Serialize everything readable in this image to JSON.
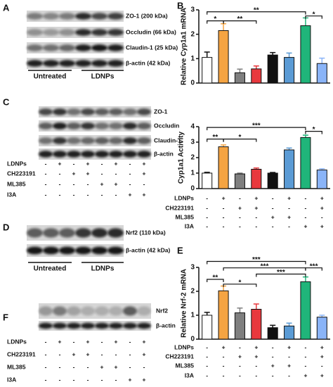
{
  "panel_labels": [
    "A",
    "B",
    "C",
    "D",
    "E",
    "F"
  ],
  "blot_a": {
    "rows": [
      "ZO-1 (200 kDa)",
      "Occludin (66 kDa)",
      "Claudin-1 (25 kDa)",
      "β-actin (42 kDa)"
    ],
    "groups": [
      "Untreated",
      "LDNPs"
    ]
  },
  "blot_c": {
    "rows": [
      "ZO-1",
      "Occludin",
      "Claudin-1",
      "β-actin"
    ],
    "treatments": [
      {
        "name": "LDNPs",
        "marks": [
          "-",
          "+",
          "-",
          "+",
          "-",
          "+",
          "-",
          "+"
        ]
      },
      {
        "name": "CH223191",
        "marks": [
          "-",
          "-",
          "+",
          "+",
          "-",
          "-",
          "-",
          "+"
        ]
      },
      {
        "name": "ML385",
        "marks": [
          "-",
          "-",
          "-",
          "-",
          "+",
          "+",
          "-",
          "-"
        ]
      },
      {
        "name": "I3A",
        "marks": [
          "-",
          "-",
          "-",
          "-",
          "-",
          "-",
          "+",
          "+"
        ]
      }
    ]
  },
  "blot_d": {
    "rows": [
      "Nrf2 (110 kDa)",
      "β-actin (42 kDa)"
    ],
    "groups": [
      "Untreated",
      "LDNPs"
    ]
  },
  "blot_f": {
    "rows": [
      "Nrf2",
      "β-actin"
    ],
    "treatments": [
      {
        "name": "LDNPs",
        "marks": [
          "-",
          "+",
          "-",
          "+",
          "-",
          "+",
          "-",
          "+"
        ]
      },
      {
        "name": "CH223191",
        "marks": [
          "-",
          "-",
          "+",
          "+",
          "-",
          "-",
          "-",
          "+"
        ]
      },
      {
        "name": "ML385",
        "marks": [
          "-",
          "-",
          "-",
          "-",
          "+",
          "+",
          "-",
          "-"
        ]
      },
      {
        "name": "I3A",
        "marks": [
          "-",
          "-",
          "-",
          "-",
          "-",
          "-",
          "+",
          "+"
        ]
      }
    ]
  },
  "chart_data": [
    {
      "type": "bar",
      "ylabel": "Relative Cyp1a1 mRNA",
      "ylim": [
        0,
        3
      ],
      "yticks": [
        0,
        1,
        2,
        3
      ],
      "values": [
        1.05,
        2.15,
        0.42,
        0.58,
        1.15,
        1.05,
        2.35,
        0.8
      ],
      "errors": [
        0.22,
        0.28,
        0.15,
        0.12,
        0.1,
        0.18,
        0.32,
        0.22
      ],
      "colors": [
        "#ffffff",
        "#f5a442",
        "#7f7f7f",
        "#e8383d",
        "#111111",
        "#5b9bd5",
        "#20b57a",
        "#8ab4f8"
      ],
      "annotations": [
        "*",
        "**",
        "**",
        "*"
      ]
    },
    {
      "type": "bar",
      "ylabel": "Cyp1a1 Activity",
      "ylim": [
        0,
        4
      ],
      "yticks": [
        0,
        1,
        2,
        3,
        4
      ],
      "values": [
        1.0,
        2.7,
        0.95,
        1.25,
        1.0,
        2.5,
        3.3,
        1.2
      ],
      "errors": [
        0.05,
        0.12,
        0.05,
        0.08,
        0.04,
        0.12,
        0.15,
        0.08
      ],
      "colors": [
        "#ffffff",
        "#f5a442",
        "#7f7f7f",
        "#e8383d",
        "#111111",
        "#5b9bd5",
        "#20b57a",
        "#8ab4f8"
      ],
      "annotations": [
        "**",
        "*",
        "***",
        "*"
      ],
      "treatments": [
        {
          "name": "LDNPs",
          "marks": [
            "-",
            "+",
            "-",
            "+",
            "-",
            "+",
            "-",
            "+"
          ]
        },
        {
          "name": "CH223191",
          "marks": [
            "-",
            "-",
            "+",
            "+",
            "-",
            "-",
            "-",
            "+"
          ]
        },
        {
          "name": "ML385",
          "marks": [
            "-",
            "-",
            "-",
            "-",
            "+",
            "+",
            "-",
            "-"
          ]
        },
        {
          "name": "I3A",
          "marks": [
            "-",
            "-",
            "-",
            "-",
            "-",
            "-",
            "+",
            "+"
          ]
        }
      ]
    },
    {
      "type": "bar",
      "ylabel": "Relative Nrf-2 mRNA",
      "ylim": [
        0,
        3
      ],
      "yticks": [
        0,
        1,
        2,
        3
      ],
      "values": [
        1.0,
        2.02,
        1.1,
        1.25,
        0.48,
        0.55,
        2.4,
        0.92
      ],
      "errors": [
        0.12,
        0.2,
        0.2,
        0.22,
        0.1,
        0.12,
        0.2,
        0.08
      ],
      "colors": [
        "#ffffff",
        "#f5a442",
        "#7f7f7f",
        "#e8383d",
        "#111111",
        "#5b9bd5",
        "#20b57a",
        "#8ab4f8"
      ],
      "annotations": [
        "**",
        "*",
        "***",
        "***",
        "***",
        "***"
      ],
      "treatments": [
        {
          "name": "LDNPs",
          "marks": [
            "-",
            "+",
            "-",
            "+",
            "-",
            "+",
            "-",
            "+"
          ]
        },
        {
          "name": "CH223191",
          "marks": [
            "-",
            "-",
            "+",
            "+",
            "-",
            "-",
            "-",
            "+"
          ]
        },
        {
          "name": "ML385",
          "marks": [
            "-",
            "-",
            "-",
            "-",
            "+",
            "+",
            "-",
            "-"
          ]
        },
        {
          "name": "I3A",
          "marks": [
            "-",
            "-",
            "-",
            "-",
            "-",
            "-",
            "+",
            "+"
          ]
        }
      ]
    }
  ]
}
